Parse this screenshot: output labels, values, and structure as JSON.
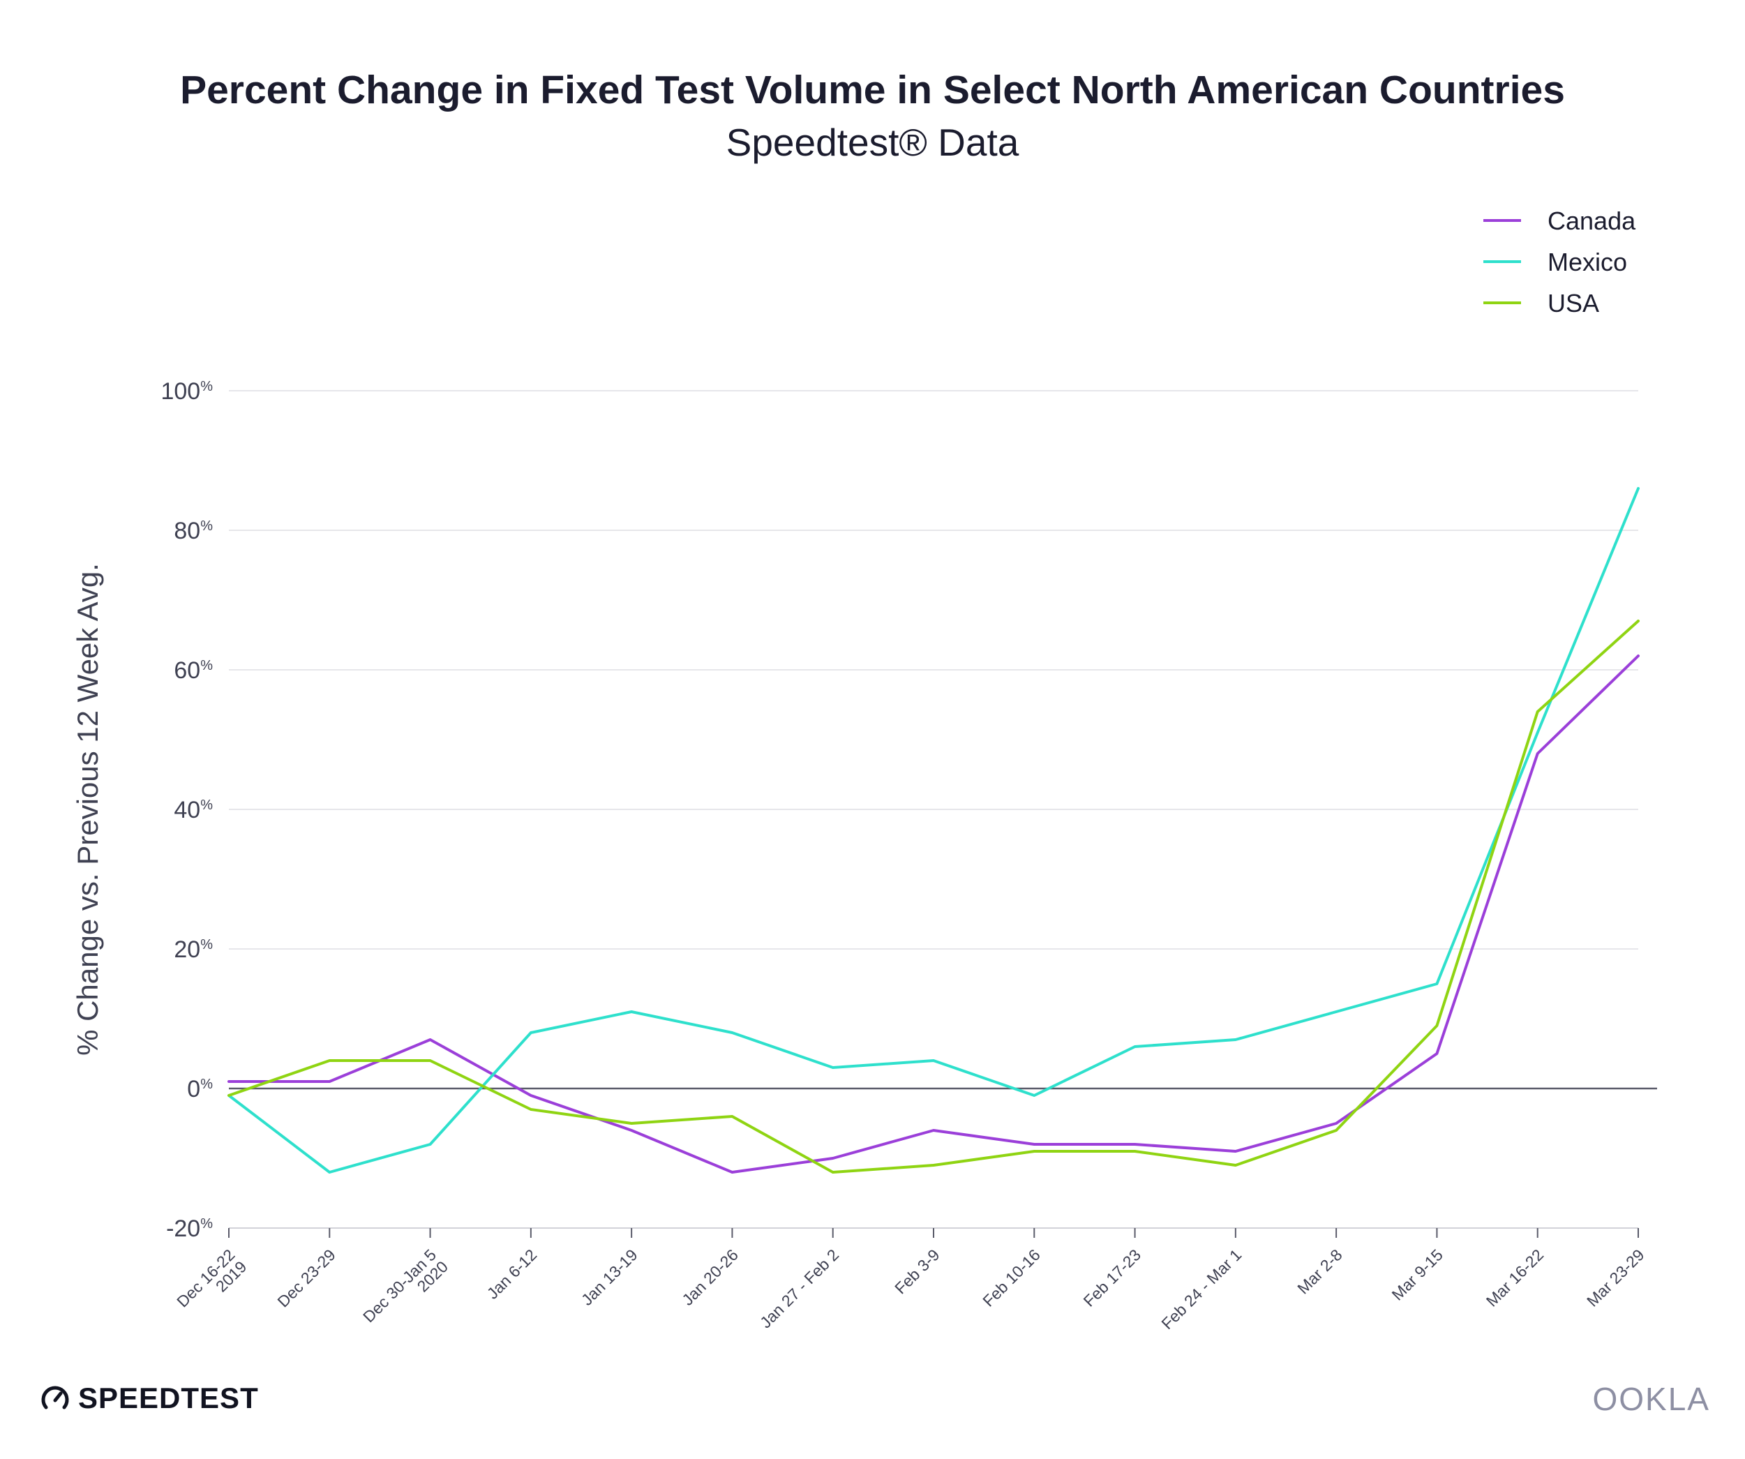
{
  "header": {
    "title": "Percent Change in Fixed Test Volume in Select North American Countries",
    "subtitle": "Speedtest® Data"
  },
  "chart_data": {
    "type": "line",
    "title": "Percent Change in Fixed Test Volume in Select North American Countries",
    "subtitle": "Speedtest® Data",
    "xlabel": "",
    "ylabel": "% Change vs. Previous 12 Week Avg.",
    "ylim": [
      -20,
      100
    ],
    "yticks": [
      -20,
      0,
      20,
      40,
      60,
      80,
      100
    ],
    "ytick_labels": [
      "-20%",
      "0%",
      "20%",
      "40%",
      "60%",
      "80%",
      "100%"
    ],
    "grid": true,
    "legend_position": "top-right",
    "categories": [
      [
        "Dec 16-22",
        "2019"
      ],
      [
        "Dec 23-29"
      ],
      [
        "Dec 30-Jan 5",
        "2020"
      ],
      [
        "Jan 6-12"
      ],
      [
        "Jan 13-19"
      ],
      [
        "Jan 20-26"
      ],
      [
        "Jan 27 - Feb 2"
      ],
      [
        "Feb 3-9"
      ],
      [
        "Feb 10-16"
      ],
      [
        "Feb 17-23"
      ],
      [
        "Feb 24 - Mar 1"
      ],
      [
        "Mar 2-8"
      ],
      [
        "Mar 9-15"
      ],
      [
        "Mar 16-22"
      ],
      [
        "Mar 23-29"
      ]
    ],
    "series": [
      {
        "name": "Canada",
        "color": "#9b3fd9",
        "values": [
          1,
          1,
          7,
          -1,
          -6,
          -12,
          -10,
          -6,
          -8,
          -8,
          -9,
          -5,
          5,
          48,
          62
        ]
      },
      {
        "name": "Mexico",
        "color": "#2ee0cc",
        "values": [
          -1,
          -12,
          -8,
          8,
          11,
          8,
          3,
          4,
          -1,
          6,
          7,
          11,
          15,
          51,
          86
        ]
      },
      {
        "name": "USA",
        "color": "#8fd412",
        "values": [
          -1,
          4,
          4,
          -3,
          -5,
          -4,
          -12,
          -11,
          -9,
          -9,
          -11,
          -6,
          9,
          54,
          67
        ]
      }
    ]
  },
  "footer": {
    "brand_left": "SPEEDTEST",
    "brand_left_icon": "speedometer-icon",
    "brand_right": "OOKLA"
  }
}
